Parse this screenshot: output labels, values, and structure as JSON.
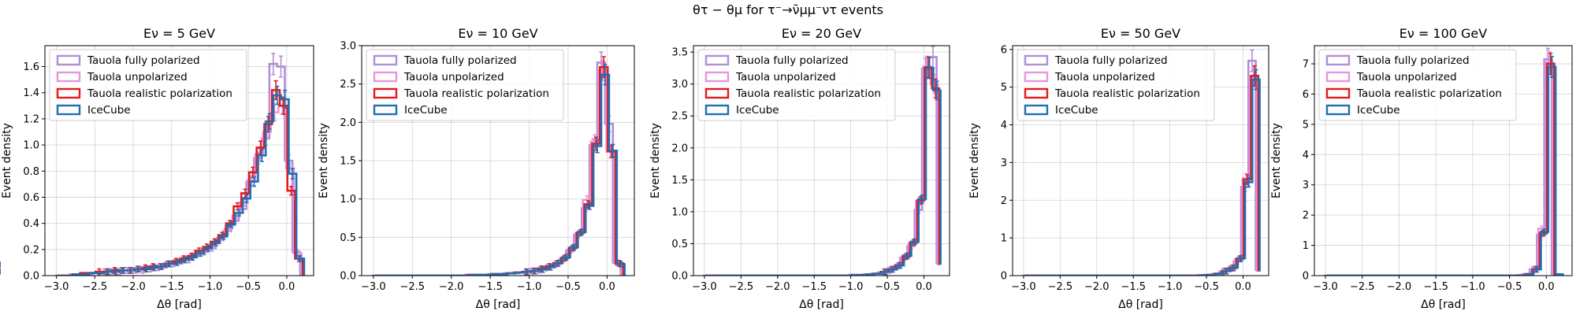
{
  "figure": {
    "suptitle": "θτ − θμ for τ⁻→ν̄μμ⁻ντ events"
  },
  "chart_data": [
    {
      "type": "line",
      "title": "Eν = 5 GeV",
      "xlabel": "Δθ [rad]",
      "ylabel": "Event density",
      "xlim": [
        -3.15,
        0.35
      ],
      "ylim": [
        0,
        1.76
      ],
      "xticks": [
        -3.0,
        -2.5,
        -2.0,
        -1.5,
        -1.0,
        -0.5,
        0.0
      ],
      "xtick_labels": [
        "−3.0",
        "−2.5",
        "−2.0",
        "−1.5",
        "−1.0",
        "−0.5",
        "0.0"
      ],
      "yticks": [
        0,
        0.2,
        0.4,
        0.6,
        0.8,
        1.0,
        1.2,
        1.4,
        1.6
      ],
      "ytick_labels": [
        "0.0",
        "0.2",
        "0.4",
        "0.6",
        "0.8",
        "1.0",
        "1.2",
        "1.4",
        "1.6"
      ],
      "grid": true,
      "legend_position": "upper-left",
      "bin_edges": [
        -3.0,
        -2.9,
        -2.8,
        -2.7,
        -2.6,
        -2.5,
        -2.4,
        -2.3,
        -2.2,
        -2.1,
        -2.0,
        -1.9,
        -1.8,
        -1.7,
        -1.6,
        -1.5,
        -1.4,
        -1.3,
        -1.2,
        -1.1,
        -1.0,
        -0.9,
        -0.8,
        -0.7,
        -0.6,
        -0.5,
        -0.4,
        -0.3,
        -0.2,
        -0.1,
        0.0,
        0.1,
        0.2
      ],
      "series": [
        {
          "name": "Tauola fully polarized",
          "color": "#b28ed8",
          "values": [
            0.0,
            0.0,
            0.01,
            0.01,
            0.01,
            0.02,
            0.03,
            0.03,
            0.03,
            0.04,
            0.04,
            0.04,
            0.05,
            0.06,
            0.08,
            0.09,
            0.11,
            0.12,
            0.16,
            0.18,
            0.21,
            0.27,
            0.34,
            0.42,
            0.51,
            0.72,
            0.9,
            1.05,
            1.62,
            1.6,
            0.88,
            0.18
          ]
        },
        {
          "name": "Tauola unpolarized",
          "color": "#e696dc",
          "values": [
            0.0,
            0.0,
            0.01,
            0.01,
            0.02,
            0.02,
            0.03,
            0.03,
            0.04,
            0.04,
            0.04,
            0.05,
            0.06,
            0.07,
            0.09,
            0.1,
            0.12,
            0.14,
            0.17,
            0.2,
            0.23,
            0.29,
            0.36,
            0.46,
            0.56,
            0.73,
            0.93,
            1.1,
            1.25,
            1.3,
            0.82,
            0.17
          ]
        },
        {
          "name": "Tauola realistic polarization",
          "color": "#e41a1c",
          "values": [
            0.0,
            0.0,
            0.01,
            0.02,
            0.02,
            0.03,
            0.03,
            0.04,
            0.04,
            0.04,
            0.05,
            0.06,
            0.07,
            0.07,
            0.09,
            0.11,
            0.13,
            0.15,
            0.19,
            0.22,
            0.26,
            0.31,
            0.4,
            0.53,
            0.63,
            0.79,
            0.98,
            1.16,
            1.42,
            1.3,
            0.65,
            0.13
          ]
        },
        {
          "name": "IceCube",
          "color": "#1f6fb2",
          "values": [
            0.0,
            0.0,
            0.01,
            0.01,
            0.02,
            0.02,
            0.03,
            0.03,
            0.04,
            0.04,
            0.05,
            0.05,
            0.06,
            0.07,
            0.09,
            0.1,
            0.12,
            0.14,
            0.17,
            0.21,
            0.25,
            0.3,
            0.39,
            0.48,
            0.59,
            0.72,
            0.92,
            1.18,
            1.38,
            1.35,
            0.78,
            0.13
          ]
        }
      ]
    },
    {
      "type": "line",
      "title": "Eν = 10 GeV",
      "xlabel": "Δθ [rad]",
      "ylabel": "Event density",
      "xlim": [
        -3.15,
        0.35
      ],
      "ylim": [
        0,
        3.0
      ],
      "xticks": [
        -3.0,
        -2.5,
        -2.0,
        -1.5,
        -1.0,
        -0.5,
        0.0
      ],
      "xtick_labels": [
        "−3.0",
        "−2.5",
        "−2.0",
        "−1.5",
        "−1.0",
        "−0.5",
        "0.0"
      ],
      "yticks": [
        0,
        0.5,
        1.0,
        1.5,
        2.0,
        2.5,
        3.0
      ],
      "ytick_labels": [
        "0.0",
        "0.5",
        "1.0",
        "1.5",
        "2.0",
        "2.5",
        "3.0"
      ],
      "grid": true,
      "legend_position": "upper-left",
      "bin_edges": [
        -3.0,
        -2.9,
        -2.8,
        -2.7,
        -2.6,
        -2.5,
        -2.4,
        -2.3,
        -2.2,
        -2.1,
        -2.0,
        -1.9,
        -1.8,
        -1.7,
        -1.6,
        -1.5,
        -1.4,
        -1.3,
        -1.2,
        -1.1,
        -1.0,
        -0.9,
        -0.8,
        -0.7,
        -0.6,
        -0.5,
        -0.4,
        -0.3,
        -0.2,
        -0.1,
        0.0,
        0.1,
        0.2
      ],
      "series": [
        {
          "name": "Tauola fully polarized",
          "color": "#b28ed8",
          "values": [
            0,
            0,
            0,
            0,
            0,
            0,
            0,
            0,
            0,
            0,
            0.0,
            0.0,
            0.01,
            0.01,
            0.01,
            0.02,
            0.02,
            0.03,
            0.03,
            0.04,
            0.06,
            0.07,
            0.1,
            0.14,
            0.2,
            0.33,
            0.53,
            0.88,
            1.7,
            2.78,
            1.98,
            0.17
          ]
        },
        {
          "name": "Tauola unpolarized",
          "color": "#e696dc",
          "values": [
            0,
            0,
            0,
            0,
            0,
            0,
            0,
            0,
            0,
            0,
            0.0,
            0.0,
            0.01,
            0.01,
            0.01,
            0.02,
            0.02,
            0.03,
            0.04,
            0.04,
            0.06,
            0.08,
            0.11,
            0.15,
            0.22,
            0.34,
            0.55,
            0.99,
            1.75,
            2.68,
            1.62,
            0.16
          ]
        },
        {
          "name": "Tauola realistic polarization",
          "color": "#e41a1c",
          "values": [
            0,
            0,
            0,
            0,
            0,
            0,
            0,
            0,
            0,
            0,
            0.0,
            0.0,
            0.01,
            0.01,
            0.01,
            0.02,
            0.02,
            0.03,
            0.04,
            0.05,
            0.06,
            0.09,
            0.12,
            0.16,
            0.23,
            0.36,
            0.56,
            0.93,
            1.72,
            2.72,
            1.62,
            0.16
          ]
        },
        {
          "name": "IceCube",
          "color": "#1f6fb2",
          "values": [
            0,
            0,
            0,
            0,
            0,
            0,
            0,
            0,
            0,
            0,
            0.0,
            0.0,
            0.01,
            0.01,
            0.01,
            0.02,
            0.02,
            0.03,
            0.04,
            0.05,
            0.06,
            0.08,
            0.11,
            0.16,
            0.24,
            0.37,
            0.57,
            0.91,
            1.69,
            2.62,
            1.63,
            0.15
          ]
        }
      ]
    },
    {
      "type": "line",
      "title": "Eν = 20 GeV",
      "xlabel": "Δθ [rad]",
      "ylabel": "Event density",
      "xlim": [
        -3.15,
        0.35
      ],
      "ylim": [
        0,
        3.6
      ],
      "xticks": [
        -3.0,
        -2.5,
        -2.0,
        -1.5,
        -1.0,
        -0.5,
        0.0
      ],
      "xtick_labels": [
        "−3.0",
        "−2.5",
        "−2.0",
        "−1.5",
        "−1.0",
        "−0.5",
        "0.0"
      ],
      "yticks": [
        0,
        0.5,
        1.0,
        1.5,
        2.0,
        2.5,
        3.0,
        3.5
      ],
      "ytick_labels": [
        "0.0",
        "0.5",
        "1.0",
        "1.5",
        "2.0",
        "2.5",
        "3.0",
        "3.5"
      ],
      "grid": true,
      "legend_position": "upper-left",
      "bin_edges": [
        -3.0,
        -2.9,
        -2.8,
        -2.7,
        -2.6,
        -2.5,
        -2.4,
        -2.3,
        -2.2,
        -2.1,
        -2.0,
        -1.9,
        -1.8,
        -1.7,
        -1.6,
        -1.5,
        -1.4,
        -1.3,
        -1.2,
        -1.1,
        -1.0,
        -0.9,
        -0.8,
        -0.7,
        -0.6,
        -0.5,
        -0.4,
        -0.3,
        -0.2,
        -0.1,
        0.0,
        0.1,
        0.2
      ],
      "series": [
        {
          "name": "Tauola fully polarized",
          "color": "#b28ed8",
          "values": [
            0,
            0,
            0,
            0,
            0,
            0,
            0,
            0,
            0,
            0,
            0,
            0,
            0,
            0,
            0,
            0,
            0,
            0,
            0.0,
            0.0,
            0.01,
            0.01,
            0.02,
            0.03,
            0.05,
            0.08,
            0.13,
            0.28,
            0.46,
            1.03,
            3.24,
            3.42,
            0.18
          ]
        },
        {
          "name": "Tauola unpolarized",
          "color": "#e696dc",
          "values": [
            0,
            0,
            0,
            0,
            0,
            0,
            0,
            0,
            0,
            0,
            0,
            0,
            0,
            0,
            0,
            0,
            0,
            0,
            0.0,
            0.0,
            0.01,
            0.01,
            0.02,
            0.03,
            0.05,
            0.09,
            0.15,
            0.29,
            0.5,
            1.17,
            3.27,
            3.0,
            0.16
          ]
        },
        {
          "name": "Tauola realistic polarization",
          "color": "#e41a1c",
          "values": [
            0,
            0,
            0,
            0,
            0,
            0,
            0,
            0,
            0,
            0,
            0,
            0,
            0,
            0,
            0,
            0,
            0,
            0,
            0.0,
            0.0,
            0.01,
            0.01,
            0.02,
            0.03,
            0.06,
            0.1,
            0.16,
            0.3,
            0.52,
            1.18,
            3.26,
            2.93,
            0.17
          ]
        },
        {
          "name": "IceCube",
          "color": "#1f6fb2",
          "values": [
            0,
            0,
            0,
            0,
            0,
            0,
            0,
            0,
            0,
            0,
            0,
            0,
            0,
            0,
            0,
            0,
            0,
            0,
            0.0,
            0.0,
            0.01,
            0.01,
            0.02,
            0.03,
            0.06,
            0.1,
            0.16,
            0.31,
            0.53,
            1.2,
            3.25,
            2.9,
            0.17
          ]
        }
      ]
    },
    {
      "type": "line",
      "title": "Eν = 50 GeV",
      "xlabel": "Δθ [rad]",
      "ylabel": "Event density",
      "xlim": [
        -3.15,
        0.35
      ],
      "ylim": [
        0,
        6.1
      ],
      "xticks": [
        -3.0,
        -2.5,
        -2.0,
        -1.5,
        -1.0,
        -0.5,
        0.0
      ],
      "xtick_labels": [
        "−3.0",
        "−2.5",
        "−2.0",
        "−1.5",
        "−1.0",
        "−0.5",
        "0.0"
      ],
      "yticks": [
        0,
        1,
        2,
        3,
        4,
        5,
        6
      ],
      "ytick_labels": [
        "0",
        "1",
        "2",
        "3",
        "4",
        "5",
        "6"
      ],
      "grid": true,
      "legend_position": "upper-left",
      "bin_edges": [
        -3.0,
        -2.9,
        -2.8,
        -2.7,
        -2.6,
        -2.5,
        -2.4,
        -2.3,
        -2.2,
        -2.1,
        -2.0,
        -1.9,
        -1.8,
        -1.7,
        -1.6,
        -1.5,
        -1.4,
        -1.3,
        -1.2,
        -1.1,
        -1.0,
        -0.9,
        -0.8,
        -0.7,
        -0.6,
        -0.5,
        -0.4,
        -0.3,
        -0.2,
        -0.1,
        0.0,
        0.1,
        0.2
      ],
      "series": [
        {
          "name": "Tauola fully polarized",
          "color": "#b28ed8",
          "values": [
            0,
            0,
            0,
            0,
            0,
            0,
            0,
            0,
            0,
            0,
            0,
            0,
            0,
            0,
            0,
            0,
            0,
            0,
            0,
            0,
            0,
            0,
            0,
            0.0,
            0.01,
            0.02,
            0.04,
            0.1,
            0.18,
            0.38,
            2.35,
            5.7,
            0.12
          ]
        },
        {
          "name": "Tauola unpolarized",
          "color": "#e696dc",
          "values": [
            0,
            0,
            0,
            0,
            0,
            0,
            0,
            0,
            0,
            0,
            0,
            0,
            0,
            0,
            0,
            0,
            0,
            0,
            0,
            0,
            0,
            0,
            0,
            0.0,
            0.01,
            0.02,
            0.05,
            0.12,
            0.2,
            0.44,
            2.58,
            5.28,
            0.1
          ]
        },
        {
          "name": "Tauola realistic polarization",
          "color": "#e41a1c",
          "values": [
            0,
            0,
            0,
            0,
            0,
            0,
            0,
            0,
            0,
            0,
            0,
            0,
            0,
            0,
            0,
            0,
            0,
            0,
            0,
            0,
            0,
            0,
            0,
            0.0,
            0.01,
            0.02,
            0.05,
            0.12,
            0.2,
            0.45,
            2.55,
            5.3,
            0.11
          ]
        },
        {
          "name": "IceCube",
          "color": "#1f6fb2",
          "values": [
            0,
            0,
            0,
            0,
            0,
            0,
            0,
            0,
            0,
            0,
            0,
            0,
            0,
            0,
            0,
            0,
            0,
            0,
            0,
            0,
            0,
            0,
            0,
            0.0,
            0.01,
            0.02,
            0.05,
            0.12,
            0.21,
            0.46,
            2.48,
            5.2,
            0.11
          ]
        }
      ]
    },
    {
      "type": "line",
      "title": "Eν = 100 GeV",
      "xlabel": "Δθ [rad]",
      "ylabel": "Event density",
      "xlim": [
        -3.15,
        0.35
      ],
      "ylim": [
        0,
        7.6
      ],
      "xticks": [
        -3.0,
        -2.5,
        -2.0,
        -1.5,
        -1.0,
        -0.5,
        0.0
      ],
      "xtick_labels": [
        "−3.0",
        "−2.5",
        "−2.0",
        "−1.5",
        "−1.0",
        "−0.5",
        "0.0"
      ],
      "yticks": [
        0,
        1,
        2,
        3,
        4,
        5,
        6,
        7
      ],
      "ytick_labels": [
        "0",
        "1",
        "2",
        "3",
        "4",
        "5",
        "6",
        "7"
      ],
      "grid": true,
      "legend_position": "upper-left",
      "bin_edges": [
        -3.0,
        -2.9,
        -2.8,
        -2.7,
        -2.6,
        -2.5,
        -2.4,
        -2.3,
        -2.2,
        -2.1,
        -2.0,
        -1.9,
        -1.8,
        -1.7,
        -1.6,
        -1.5,
        -1.4,
        -1.3,
        -1.2,
        -1.1,
        -1.0,
        -0.9,
        -0.8,
        -0.7,
        -0.6,
        -0.5,
        -0.4,
        -0.3,
        -0.2,
        -0.1,
        0.0,
        0.1,
        0.2
      ],
      "series": [
        {
          "name": "Tauola fully polarized",
          "color": "#b28ed8",
          "values": [
            0,
            0,
            0,
            0,
            0,
            0,
            0,
            0,
            0,
            0,
            0,
            0,
            0,
            0,
            0,
            0,
            0,
            0,
            0,
            0,
            0,
            0,
            0,
            0,
            0,
            0.0,
            0.01,
            0.04,
            0.2,
            1.35,
            7.15,
            0.05,
            0.0
          ]
        },
        {
          "name": "Tauola unpolarized",
          "color": "#e696dc",
          "values": [
            0,
            0,
            0,
            0,
            0,
            0,
            0,
            0,
            0,
            0,
            0,
            0,
            0,
            0,
            0,
            0,
            0,
            0,
            0,
            0,
            0,
            0,
            0,
            0,
            0,
            0.0,
            0.01,
            0.05,
            0.22,
            1.55,
            7.05,
            0.04,
            0.0
          ]
        },
        {
          "name": "Tauola realistic polarization",
          "color": "#e41a1c",
          "values": [
            0,
            0,
            0,
            0,
            0,
            0,
            0,
            0,
            0,
            0,
            0,
            0,
            0,
            0,
            0,
            0,
            0,
            0,
            0,
            0,
            0,
            0,
            0,
            0,
            0,
            0.0,
            0.01,
            0.05,
            0.21,
            1.4,
            7.0,
            0.04,
            0.0
          ]
        },
        {
          "name": "IceCube",
          "color": "#1f6fb2",
          "values": [
            0,
            0,
            0,
            0,
            0,
            0,
            0,
            0,
            0,
            0,
            0,
            0,
            0,
            0,
            0,
            0,
            0,
            0,
            0,
            0,
            0,
            0,
            0,
            0,
            0,
            0.0,
            0.01,
            0.05,
            0.21,
            1.45,
            6.9,
            0.04,
            0.0
          ]
        }
      ]
    }
  ]
}
